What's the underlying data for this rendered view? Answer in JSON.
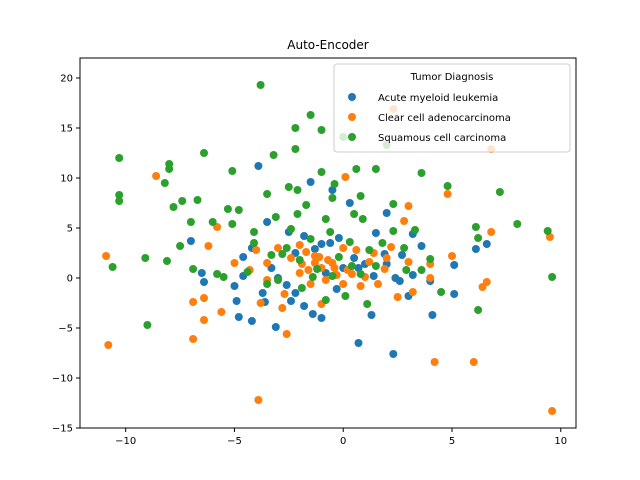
{
  "chart_data": {
    "type": "scatter",
    "title": "Auto-Encoder",
    "xlabel": "",
    "ylabel": "",
    "xlim": [
      -12.1,
      10.7
    ],
    "ylim": [
      -15,
      22
    ],
    "xticks": [
      -10,
      -5,
      0,
      5,
      10
    ],
    "yticks": [
      -15,
      -10,
      -5,
      0,
      5,
      10,
      15,
      20
    ],
    "grid": false,
    "legend": {
      "title": "Tumor Diagnosis",
      "position": "top-right"
    },
    "series": [
      {
        "name": "Acute myeloid leukemia",
        "color": "#1f77b4",
        "points": [
          [
            -3.9,
            11.2
          ],
          [
            -1.5,
            9.6
          ],
          [
            0.3,
            7.5
          ],
          [
            2.0,
            6.5
          ],
          [
            -0.5,
            8.8
          ],
          [
            -3.5,
            5.6
          ],
          [
            -2.5,
            4.6
          ],
          [
            -1.8,
            4.2
          ],
          [
            -0.6,
            3.5
          ],
          [
            1.5,
            4.5
          ],
          [
            3.2,
            4.4
          ],
          [
            3.6,
            3.2
          ],
          [
            -4.2,
            3.0
          ],
          [
            -4.6,
            2.1
          ],
          [
            -4.6,
            0.2
          ],
          [
            -6.5,
            0.5
          ],
          [
            -6.4,
            -0.4
          ],
          [
            -3.0,
            0.0
          ],
          [
            -3.3,
            1.0
          ],
          [
            -2.2,
            2.5
          ],
          [
            -1.3,
            2.9
          ],
          [
            0.5,
            2.0
          ],
          [
            1.0,
            1.4
          ],
          [
            2.0,
            1.4
          ],
          [
            2.4,
            0.0
          ],
          [
            3.2,
            0.3
          ],
          [
            4.0,
            -0.3
          ],
          [
            5.1,
            1.3
          ],
          [
            6.1,
            2.9
          ],
          [
            6.6,
            3.4
          ],
          [
            3.0,
            -1.8
          ],
          [
            4.1,
            -3.7
          ],
          [
            5.1,
            -1.6
          ],
          [
            -2.2,
            -1.5
          ],
          [
            -2.4,
            -2.3
          ],
          [
            -3.1,
            -4.9
          ],
          [
            -4.2,
            -4.3
          ],
          [
            -4.8,
            -3.9
          ],
          [
            -4.9,
            -2.3
          ],
          [
            -1.8,
            -2.8
          ],
          [
            -1.4,
            -3.6
          ],
          [
            -1.0,
            -4.0
          ],
          [
            -0.3,
            -1.1
          ],
          [
            0.7,
            -6.5
          ],
          [
            1.3,
            -3.7
          ],
          [
            2.3,
            -7.6
          ],
          [
            0.0,
            1.0
          ],
          [
            -0.8,
            0.5
          ],
          [
            -5.0,
            -0.8
          ],
          [
            0.7,
            1.0
          ],
          [
            1.9,
            2.4
          ],
          [
            -2.6,
            -0.7
          ],
          [
            -3.7,
            -1.5
          ],
          [
            -3.6,
            -2.4
          ],
          [
            -7.0,
            3.7
          ],
          [
            -1.0,
            3.4
          ],
          [
            -0.2,
            4.0
          ],
          [
            2.7,
            2.3
          ],
          [
            1.4,
            0.2
          ],
          [
            2.6,
            -0.3
          ]
        ]
      },
      {
        "name": "Clear cell adenocarcinoma",
        "color": "#ff7f0e",
        "points": [
          [
            2.3,
            16.9
          ],
          [
            6.8,
            12.9
          ],
          [
            -8.6,
            10.2
          ],
          [
            0.1,
            10.1
          ],
          [
            4.8,
            8.4
          ],
          [
            3.0,
            7.2
          ],
          [
            2.8,
            5.7
          ],
          [
            -5.8,
            5.1
          ],
          [
            -2.0,
            3.3
          ],
          [
            -1.3,
            2.2
          ],
          [
            -0.5,
            1.5
          ],
          [
            0.2,
            0.8
          ],
          [
            1.2,
            1.6
          ],
          [
            2.0,
            2.0
          ],
          [
            3.0,
            1.6
          ],
          [
            -3.5,
            1.5
          ],
          [
            -4.0,
            2.8
          ],
          [
            -6.2,
            3.2
          ],
          [
            -10.9,
            2.2
          ],
          [
            -10.8,
            -6.7
          ],
          [
            -6.9,
            -2.4
          ],
          [
            -6.4,
            -2.0
          ],
          [
            -6.4,
            -4.2
          ],
          [
            -5.6,
            -3.4
          ],
          [
            -6.9,
            -6.1
          ],
          [
            -3.9,
            -12.2
          ],
          [
            -3.8,
            -2.5
          ],
          [
            -2.8,
            -3.0
          ],
          [
            -2.6,
            -5.6
          ],
          [
            -1.5,
            -0.6
          ],
          [
            -0.3,
            0.3
          ],
          [
            0.8,
            -0.8
          ],
          [
            1.6,
            -0.6
          ],
          [
            2.5,
            -1.9
          ],
          [
            3.2,
            -1.4
          ],
          [
            4.2,
            -8.4
          ],
          [
            6.0,
            -8.4
          ],
          [
            6.6,
            -0.4
          ],
          [
            6.4,
            -0.9
          ],
          [
            9.6,
            -13.3
          ],
          [
            9.5,
            4.1
          ],
          [
            6.8,
            4.6
          ],
          [
            5.0,
            2.2
          ],
          [
            4.0,
            1.4
          ],
          [
            4.0,
            0.0
          ],
          [
            -2.0,
            0.5
          ],
          [
            -1.0,
            1.0
          ],
          [
            -0.7,
            1.8
          ],
          [
            0.0,
            3.0
          ],
          [
            0.6,
            2.8
          ],
          [
            1.4,
            2.5
          ],
          [
            -2.4,
            2.0
          ],
          [
            -3.0,
            3.0
          ],
          [
            -4.3,
            0.8
          ],
          [
            -5.0,
            1.5
          ],
          [
            -2.7,
            -1.6
          ],
          [
            -3.5,
            -0.2
          ],
          [
            -1.0,
            -2.6
          ],
          [
            0.0,
            -0.6
          ],
          [
            1.9,
            0.9
          ],
          [
            -1.9,
            1.4
          ],
          [
            -1.6,
            0.8
          ],
          [
            -1.1,
            2.1
          ],
          [
            -0.4,
            1.0
          ],
          [
            0.4,
            0.4
          ],
          [
            1.0,
            0.1
          ],
          [
            2.2,
            3.1
          ],
          [
            -0.8,
            -0.2
          ],
          [
            -1.3,
            1.5
          ],
          [
            -1.7,
            2.6
          ]
        ]
      },
      {
        "name": "Squamous cell carcinoma",
        "color": "#2ca02c",
        "points": [
          [
            -3.8,
            19.3
          ],
          [
            -1.5,
            16.3
          ],
          [
            -2.2,
            15.0
          ],
          [
            -1.0,
            14.8
          ],
          [
            0.0,
            14.1
          ],
          [
            -2.2,
            12.9
          ],
          [
            -3.2,
            12.3
          ],
          [
            -10.3,
            12.0
          ],
          [
            -6.4,
            12.5
          ],
          [
            -8.0,
            11.4
          ],
          [
            -8.0,
            10.9
          ],
          [
            -8.2,
            9.5
          ],
          [
            -5.1,
            10.7
          ],
          [
            -1.0,
            10.6
          ],
          [
            0.6,
            10.9
          ],
          [
            1.5,
            10.9
          ],
          [
            3.6,
            10.5
          ],
          [
            2.0,
            13.3
          ],
          [
            -10.3,
            8.3
          ],
          [
            -10.3,
            7.7
          ],
          [
            -7.4,
            7.7
          ],
          [
            -6.7,
            7.8
          ],
          [
            -5.3,
            6.9
          ],
          [
            -4.8,
            6.8
          ],
          [
            -3.5,
            8.4
          ],
          [
            -2.5,
            9.1
          ],
          [
            -2.1,
            8.8
          ],
          [
            -0.4,
            9.4
          ],
          [
            0.8,
            8.2
          ],
          [
            4.8,
            9.2
          ],
          [
            7.2,
            8.6
          ],
          [
            -7.8,
            7.1
          ],
          [
            -7.0,
            5.6
          ],
          [
            -6.0,
            5.6
          ],
          [
            -5.1,
            5.4
          ],
          [
            -3.1,
            6.1
          ],
          [
            -2.1,
            6.4
          ],
          [
            -0.8,
            5.9
          ],
          [
            0.9,
            5.9
          ],
          [
            2.3,
            7.4
          ],
          [
            3.3,
            4.8
          ],
          [
            6.1,
            5.1
          ],
          [
            6.2,
            4.0
          ],
          [
            8.0,
            5.4
          ],
          [
            9.4,
            4.7
          ],
          [
            9.6,
            0.1
          ],
          [
            -10.6,
            1.1
          ],
          [
            -9.1,
            2.0
          ],
          [
            -8.1,
            1.7
          ],
          [
            -7.5,
            3.2
          ],
          [
            -6.9,
            0.9
          ],
          [
            -5.8,
            0.4
          ],
          [
            -5.5,
            0.1
          ],
          [
            -4.1,
            3.5
          ],
          [
            -3.3,
            2.3
          ],
          [
            -2.6,
            3.0
          ],
          [
            -1.5,
            3.9
          ],
          [
            -0.6,
            4.6
          ],
          [
            0.3,
            3.6
          ],
          [
            1.2,
            2.8
          ],
          [
            2.3,
            4.7
          ],
          [
            2.8,
            3.0
          ],
          [
            4.0,
            1.9
          ],
          [
            3.6,
            0.8
          ],
          [
            4.5,
            -1.4
          ],
          [
            6.2,
            -3.2
          ],
          [
            -9.0,
            -4.7
          ],
          [
            -4.4,
            0.6
          ],
          [
            -3.0,
            -0.2
          ],
          [
            -1.9,
            -1.0
          ],
          [
            -0.8,
            -2.2
          ],
          [
            0.1,
            -1.8
          ],
          [
            1.1,
            -2.6
          ],
          [
            -0.5,
            0.2
          ],
          [
            0.4,
            1.2
          ],
          [
            1.5,
            1.2
          ],
          [
            -1.2,
            0.9
          ],
          [
            -2.0,
            1.8
          ],
          [
            -3.5,
            -0.6
          ],
          [
            2.9,
            0.8
          ],
          [
            -1.4,
            0.1
          ],
          [
            -0.2,
            2.1
          ],
          [
            -2.8,
            2.4
          ],
          [
            0.8,
            0.4
          ],
          [
            1.8,
            3.5
          ],
          [
            -4.1,
            4.6
          ],
          [
            -2.4,
            4.9
          ],
          [
            -0.5,
            8.0
          ],
          [
            0.5,
            6.4
          ],
          [
            -1.7,
            7.3
          ]
        ]
      }
    ]
  }
}
